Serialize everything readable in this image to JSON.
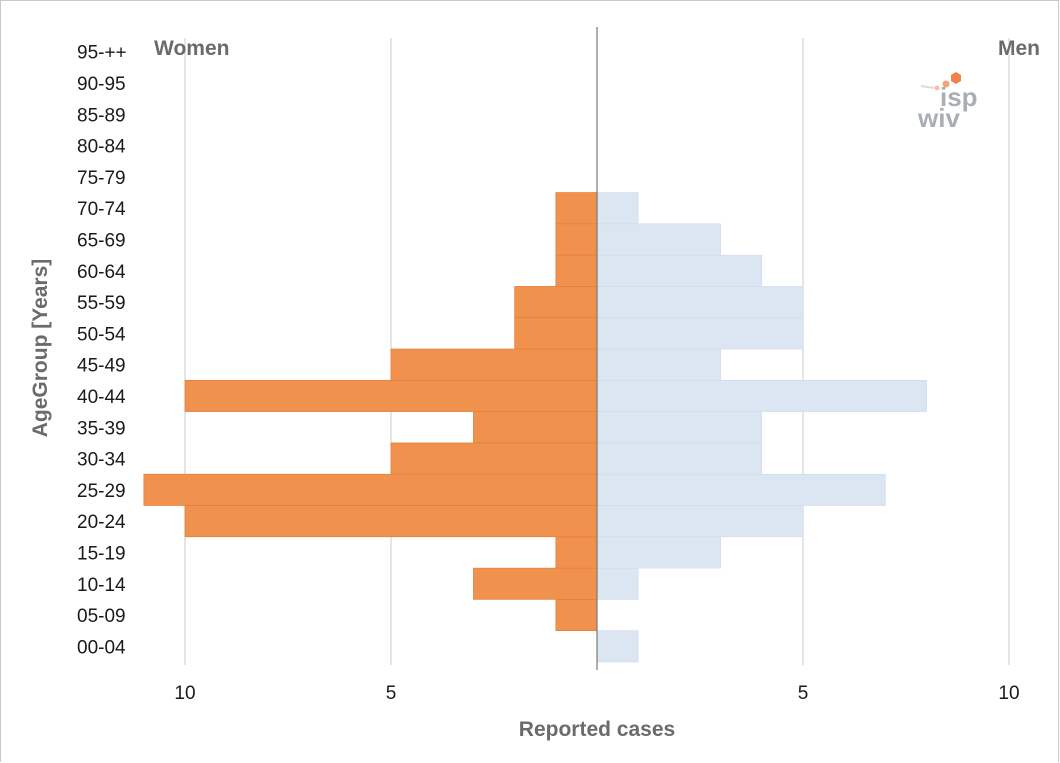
{
  "chart_data": {
    "type": "bar",
    "orientation": "horizontal",
    "subtype": "population-pyramid",
    "categories": [
      "00-04",
      "05-09",
      "10-14",
      "15-19",
      "20-24",
      "25-29",
      "30-34",
      "35-39",
      "40-44",
      "45-49",
      "50-54",
      "55-59",
      "60-64",
      "65-69",
      "70-74",
      "75-79",
      "80-84",
      "85-89",
      "90-95",
      "95-++"
    ],
    "series": [
      {
        "name": "Women",
        "color": "#f0914d",
        "values": [
          0,
          1,
          3,
          1,
          10,
          11,
          5,
          3,
          10,
          5,
          2,
          2,
          1,
          1,
          1,
          0,
          0,
          0,
          0,
          0
        ]
      },
      {
        "name": "Men",
        "color": "#dce6f3",
        "values": [
          1,
          0,
          1,
          3,
          5,
          7,
          4,
          4,
          8,
          3,
          5,
          5,
          4,
          3,
          1,
          0,
          0,
          0,
          0,
          0
        ]
      }
    ],
    "xlabel": "Reported cases",
    "ylabel": "AgeGroup [Years]",
    "xticks_left": [
      "10",
      "5"
    ],
    "xticks_right": [
      "5",
      "10"
    ],
    "xlim": [
      -11,
      11
    ],
    "grid": true,
    "left_label": "Women",
    "right_label": "Men"
  },
  "logo": {
    "line1": "isp",
    "line2": "wiv",
    "name": "isp-wiv-logo"
  }
}
